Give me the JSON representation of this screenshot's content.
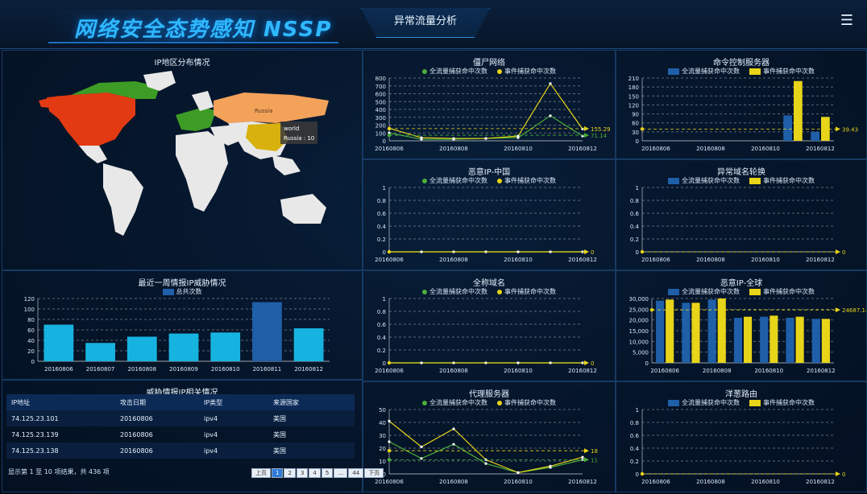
{
  "header": {
    "title": "网络安全态势感知 NSSP",
    "tab": "异常流量分析",
    "menu_icon": "hamburger-icon"
  },
  "map": {
    "title": "IP地区分布情况",
    "hover_country": "Russia",
    "tooltip_title": "world",
    "tooltip_value": "Russia : 10"
  },
  "charts": {
    "zombie": {
      "title": "僵尸网络",
      "legend": [
        "全流量捕获命中次数",
        "事件捕获命中次数"
      ],
      "type": "line"
    },
    "cnc": {
      "title": "命令控制服务器",
      "legend": [
        "全流量捕获命中次数",
        "事件捕获命中次数"
      ],
      "type": "bar"
    },
    "malicious_cn": {
      "title": "恶意IP-中国",
      "legend": [
        "全流量捕获命中次数",
        "事件捕获命中次数"
      ],
      "type": "line"
    },
    "dga": {
      "title": "异常域名轮换",
      "legend": [
        "全流量捕获命中次数",
        "事件捕获命中次数"
      ],
      "type": "bar"
    },
    "intel_week": {
      "title": "最近一周情报IP威胁情况",
      "legend": [
        "总共次数"
      ],
      "type": "bar"
    },
    "domain": {
      "title": "全称域名",
      "legend": [
        "全流量捕获命中次数",
        "事件捕获命中次数"
      ],
      "type": "line"
    },
    "malicious_global": {
      "title": "恶意IP-全球",
      "legend": [
        "全流量捕获命中次数",
        "事件捕获命中次数"
      ],
      "type": "bar"
    },
    "proxy": {
      "title": "代理服务器",
      "legend": [
        "全流量捕获命中次数",
        "事件捕获命中次数"
      ],
      "type": "line"
    },
    "tor": {
      "title": "洋葱路由",
      "legend": [
        "全流量捕获命中次数",
        "事件捕获命中次数"
      ],
      "type": "bar"
    }
  },
  "chart_data": [
    {
      "type": "line",
      "title": "僵尸网络",
      "x": [
        "20160806",
        "20160807",
        "20160808",
        "20160809",
        "20160810",
        "20160811",
        "20160812"
      ],
      "series": [
        {
          "name": "全流量捕获命中次数",
          "values": [
            100,
            20,
            20,
            30,
            40,
            320,
            60
          ]
        },
        {
          "name": "事件捕获命中次数",
          "values": [
            160,
            40,
            30,
            30,
            60,
            730,
            150
          ]
        }
      ],
      "ylim": [
        0,
        800
      ],
      "ticks": [
        "0",
        "100",
        "200",
        "300",
        "400",
        "500",
        "600",
        "700",
        "800"
      ],
      "xticks": [
        "20160806",
        "20160808",
        "20160810",
        "20160812"
      ],
      "marklines": [
        "155.29",
        "71.14"
      ]
    },
    {
      "type": "bar",
      "title": "命令控制服务器",
      "categories": [
        "20160806",
        "20160807",
        "20160808",
        "20160809",
        "20160810",
        "20160811",
        "20160812"
      ],
      "series": [
        {
          "name": "全流量捕获命中次数",
          "values": [
            0,
            0,
            0,
            0,
            0,
            85,
            30
          ]
        },
        {
          "name": "事件捕获命中次数",
          "values": [
            0,
            0,
            0,
            0,
            0,
            200,
            80
          ]
        }
      ],
      "ylim": [
        0,
        210
      ],
      "ticks": [
        "0",
        "30",
        "60",
        "90",
        "120",
        "150",
        "180",
        "210"
      ],
      "xticks": [
        "20160806",
        "20160808",
        "20160810",
        "20160812"
      ],
      "marklines": [
        "39.43"
      ]
    },
    {
      "type": "line",
      "title": "恶意IP-中国",
      "x": [
        "20160806",
        "20160807",
        "20160808",
        "20160809",
        "20160810",
        "20160811",
        "20160812"
      ],
      "series": [
        {
          "name": "全流量捕获命中次数",
          "values": [
            0,
            0,
            0,
            0,
            0,
            0,
            0
          ]
        },
        {
          "name": "事件捕获命中次数",
          "values": [
            0,
            0,
            0,
            0,
            0,
            0,
            0
          ]
        }
      ],
      "ylim": [
        0,
        1
      ],
      "ticks": [
        "0",
        "0.2",
        "0.4",
        "0.6",
        "0.8",
        "1"
      ],
      "xticks": [
        "20160806",
        "20160808",
        "20160810",
        "20160812"
      ],
      "marklines": [
        "0"
      ]
    },
    {
      "type": "bar",
      "title": "异常域名轮换",
      "categories": [
        "20160806",
        "20160807",
        "20160808",
        "20160809",
        "20160810",
        "20160811",
        "20160812"
      ],
      "series": [
        {
          "name": "全流量捕获命中次数",
          "values": [
            0,
            0,
            0,
            0,
            0,
            0,
            0
          ]
        },
        {
          "name": "事件捕获命中次数",
          "values": [
            0,
            0,
            0,
            0,
            0,
            0,
            0
          ]
        }
      ],
      "ylim": [
        0,
        1
      ],
      "ticks": [
        "0",
        "0.2",
        "0.4",
        "0.6",
        "0.8",
        "1"
      ],
      "xticks": [
        "20160806",
        "20160808",
        "20160810",
        "20160812"
      ],
      "marklines": [
        "0"
      ]
    },
    {
      "type": "bar",
      "title": "最近一周情报IP威胁情况",
      "categories": [
        "20160806",
        "20160807",
        "20160808",
        "20160809",
        "20160810",
        "20160811",
        "20160812"
      ],
      "series": [
        {
          "name": "总共次数",
          "values": [
            70,
            35,
            47,
            53,
            55,
            113,
            63
          ]
        }
      ],
      "ylim": [
        0,
        120
      ],
      "ticks": [
        "0",
        "20",
        "40",
        "60",
        "80",
        "100",
        "120"
      ],
      "xticks": [
        "20160806",
        "20160807",
        "20160808",
        "20160809",
        "20160810",
        "20160811",
        "20160812"
      ],
      "marklines": []
    },
    {
      "type": "line",
      "title": "全称域名",
      "x": [
        "20160806",
        "20160807",
        "20160808",
        "20160809",
        "20160810",
        "20160811",
        "20160812"
      ],
      "series": [
        {
          "name": "全流量捕获命中次数",
          "values": [
            0,
            0,
            0,
            0,
            0,
            0,
            0
          ]
        },
        {
          "name": "事件捕获命中次数",
          "values": [
            0,
            0,
            0,
            0,
            0,
            0,
            0
          ]
        }
      ],
      "ylim": [
        0,
        1
      ],
      "ticks": [
        "0",
        "0.2",
        "0.4",
        "0.6",
        "0.8",
        "1"
      ],
      "xticks": [
        "20160806",
        "20160808",
        "20160810",
        "20160812"
      ],
      "marklines": [
        "0"
      ]
    },
    {
      "type": "bar",
      "title": "恶意IP-全球",
      "categories": [
        "20160806",
        "20160807",
        "20160808",
        "20160809",
        "20160810",
        "20160811",
        "20160812"
      ],
      "series": [
        {
          "name": "全流量捕获命中次数",
          "values": [
            29000,
            28000,
            29500,
            21000,
            21500,
            21000,
            20500
          ]
        },
        {
          "name": "事件捕获命中次数",
          "values": [
            29500,
            28000,
            30000,
            21500,
            22000,
            21500,
            20500
          ]
        }
      ],
      "ylim": [
        0,
        30000
      ],
      "ticks": [
        "0",
        "5,000",
        "10,000",
        "15,000",
        "20,000",
        "25,000",
        "30,000"
      ],
      "xticks": [
        "20160806",
        "20160808",
        "20160810",
        "20160812"
      ],
      "marklines": [
        "24687.14"
      ]
    },
    {
      "type": "line",
      "title": "代理服务器",
      "x": [
        "20160806",
        "20160807",
        "20160808",
        "20160809",
        "20160810",
        "20160811",
        "20160812"
      ],
      "series": [
        {
          "name": "全流量捕获命中次数",
          "values": [
            25,
            12,
            23,
            8,
            1,
            5,
            11
          ]
        },
        {
          "name": "事件捕获命中次数",
          "values": [
            41,
            21,
            35,
            11,
            1,
            6,
            13
          ]
        }
      ],
      "ylim": [
        0,
        50
      ],
      "ticks": [
        "0",
        "10",
        "20",
        "30",
        "40",
        "50"
      ],
      "xticks": [
        "20160806",
        "20160808",
        "20160810",
        "20160812"
      ],
      "marklines": [
        "18",
        "11"
      ]
    },
    {
      "type": "bar",
      "title": "洋葱路由",
      "categories": [
        "20160806",
        "20160807",
        "20160808",
        "20160809",
        "20160810",
        "20160811",
        "20160812"
      ],
      "series": [
        {
          "name": "全流量捕获命中次数",
          "values": [
            0,
            0,
            0,
            0,
            0,
            0,
            0
          ]
        },
        {
          "name": "事件捕获命中次数",
          "values": [
            0,
            0,
            0,
            0,
            0,
            0,
            0
          ]
        }
      ],
      "ylim": [
        0,
        1
      ],
      "ticks": [
        "0",
        "0.2",
        "0.4",
        "0.6",
        "0.8",
        "1"
      ],
      "xticks": [
        "20160806",
        "20160808",
        "20160810",
        "20160812"
      ],
      "marklines": [
        "0"
      ]
    }
  ],
  "colors": {
    "green": "#4caf3a",
    "yellow": "#e8d418",
    "blue": "#1f5fa8",
    "cyan": "#17b3e0"
  },
  "table": {
    "title": "威胁情报IP相关情况",
    "headers": [
      "IP地址",
      "攻击日期",
      "IP类型",
      "来源国家"
    ],
    "rows": [
      [
        "74.125.23.101",
        "20160806",
        "ipv4",
        "美国"
      ],
      [
        "74.125.23.139",
        "20160806",
        "ipv4",
        "美国"
      ],
      [
        "74.125.23.138",
        "20160806",
        "ipv4",
        "美国"
      ]
    ],
    "summary": "显示第 1 至 10 项结果，共 436 项",
    "pager": [
      "上页",
      "1",
      "2",
      "3",
      "4",
      "5",
      "…",
      "44",
      "下页"
    ]
  }
}
